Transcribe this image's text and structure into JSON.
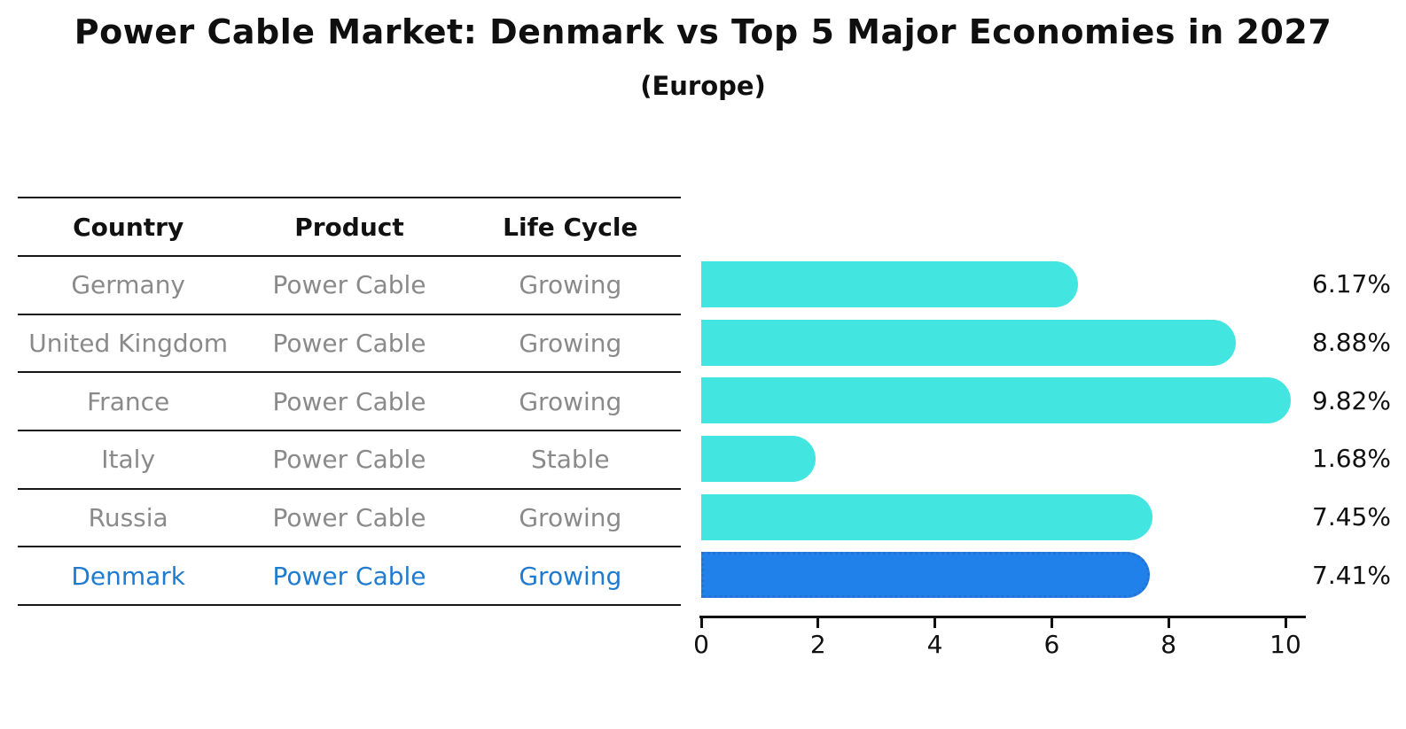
{
  "header": {
    "title": "Power Cable Market: Denmark vs Top 5 Major Economies in 2027",
    "subtitle": "(Europe)"
  },
  "table": {
    "columns": [
      "Country",
      "Product",
      "Life Cycle"
    ],
    "rows": [
      {
        "country": "Germany",
        "product": "Power Cable",
        "life_cycle": "Growing",
        "highlighted": false
      },
      {
        "country": "United Kingdom",
        "product": "Power Cable",
        "life_cycle": "Growing",
        "highlighted": false
      },
      {
        "country": "France",
        "product": "Power Cable",
        "life_cycle": "Growing",
        "highlighted": false
      },
      {
        "country": "Italy",
        "product": "Power Cable",
        "life_cycle": "Stable",
        "highlighted": false
      },
      {
        "country": "Russia",
        "product": "Power Cable",
        "life_cycle": "Growing",
        "highlighted": false
      },
      {
        "country": "Denmark",
        "product": "Power Cable",
        "life_cycle": "Growing",
        "highlighted": true
      }
    ]
  },
  "chart_data": {
    "type": "bar",
    "orientation": "horizontal",
    "title": "Power Cable Market: Denmark vs Top 5 Major Economies in 2027",
    "subtitle": "(Europe)",
    "categories": [
      "Germany",
      "United Kingdom",
      "France",
      "Italy",
      "Russia",
      "Denmark"
    ],
    "values": [
      6.17,
      8.88,
      9.82,
      1.68,
      7.45,
      7.41
    ],
    "value_labels": [
      "6.17%",
      "8.88%",
      "9.82%",
      "1.68%",
      "7.45%",
      "7.41%"
    ],
    "unit": "percent",
    "xlim": [
      0,
      10.4
    ],
    "xticks": [
      "0",
      "2",
      "4",
      "6",
      "8",
      "10"
    ],
    "grid": false,
    "legend": "none",
    "highlight_index": 5,
    "colors": {
      "bar": "#42e5e0",
      "highlight_bar": "#2181ea",
      "highlight_bar_edge": "#2472d4",
      "highlight_text": "#1f7bd0",
      "table_text": "#8a8a8a",
      "header_text": "#111111",
      "axis": "#111111"
    }
  }
}
